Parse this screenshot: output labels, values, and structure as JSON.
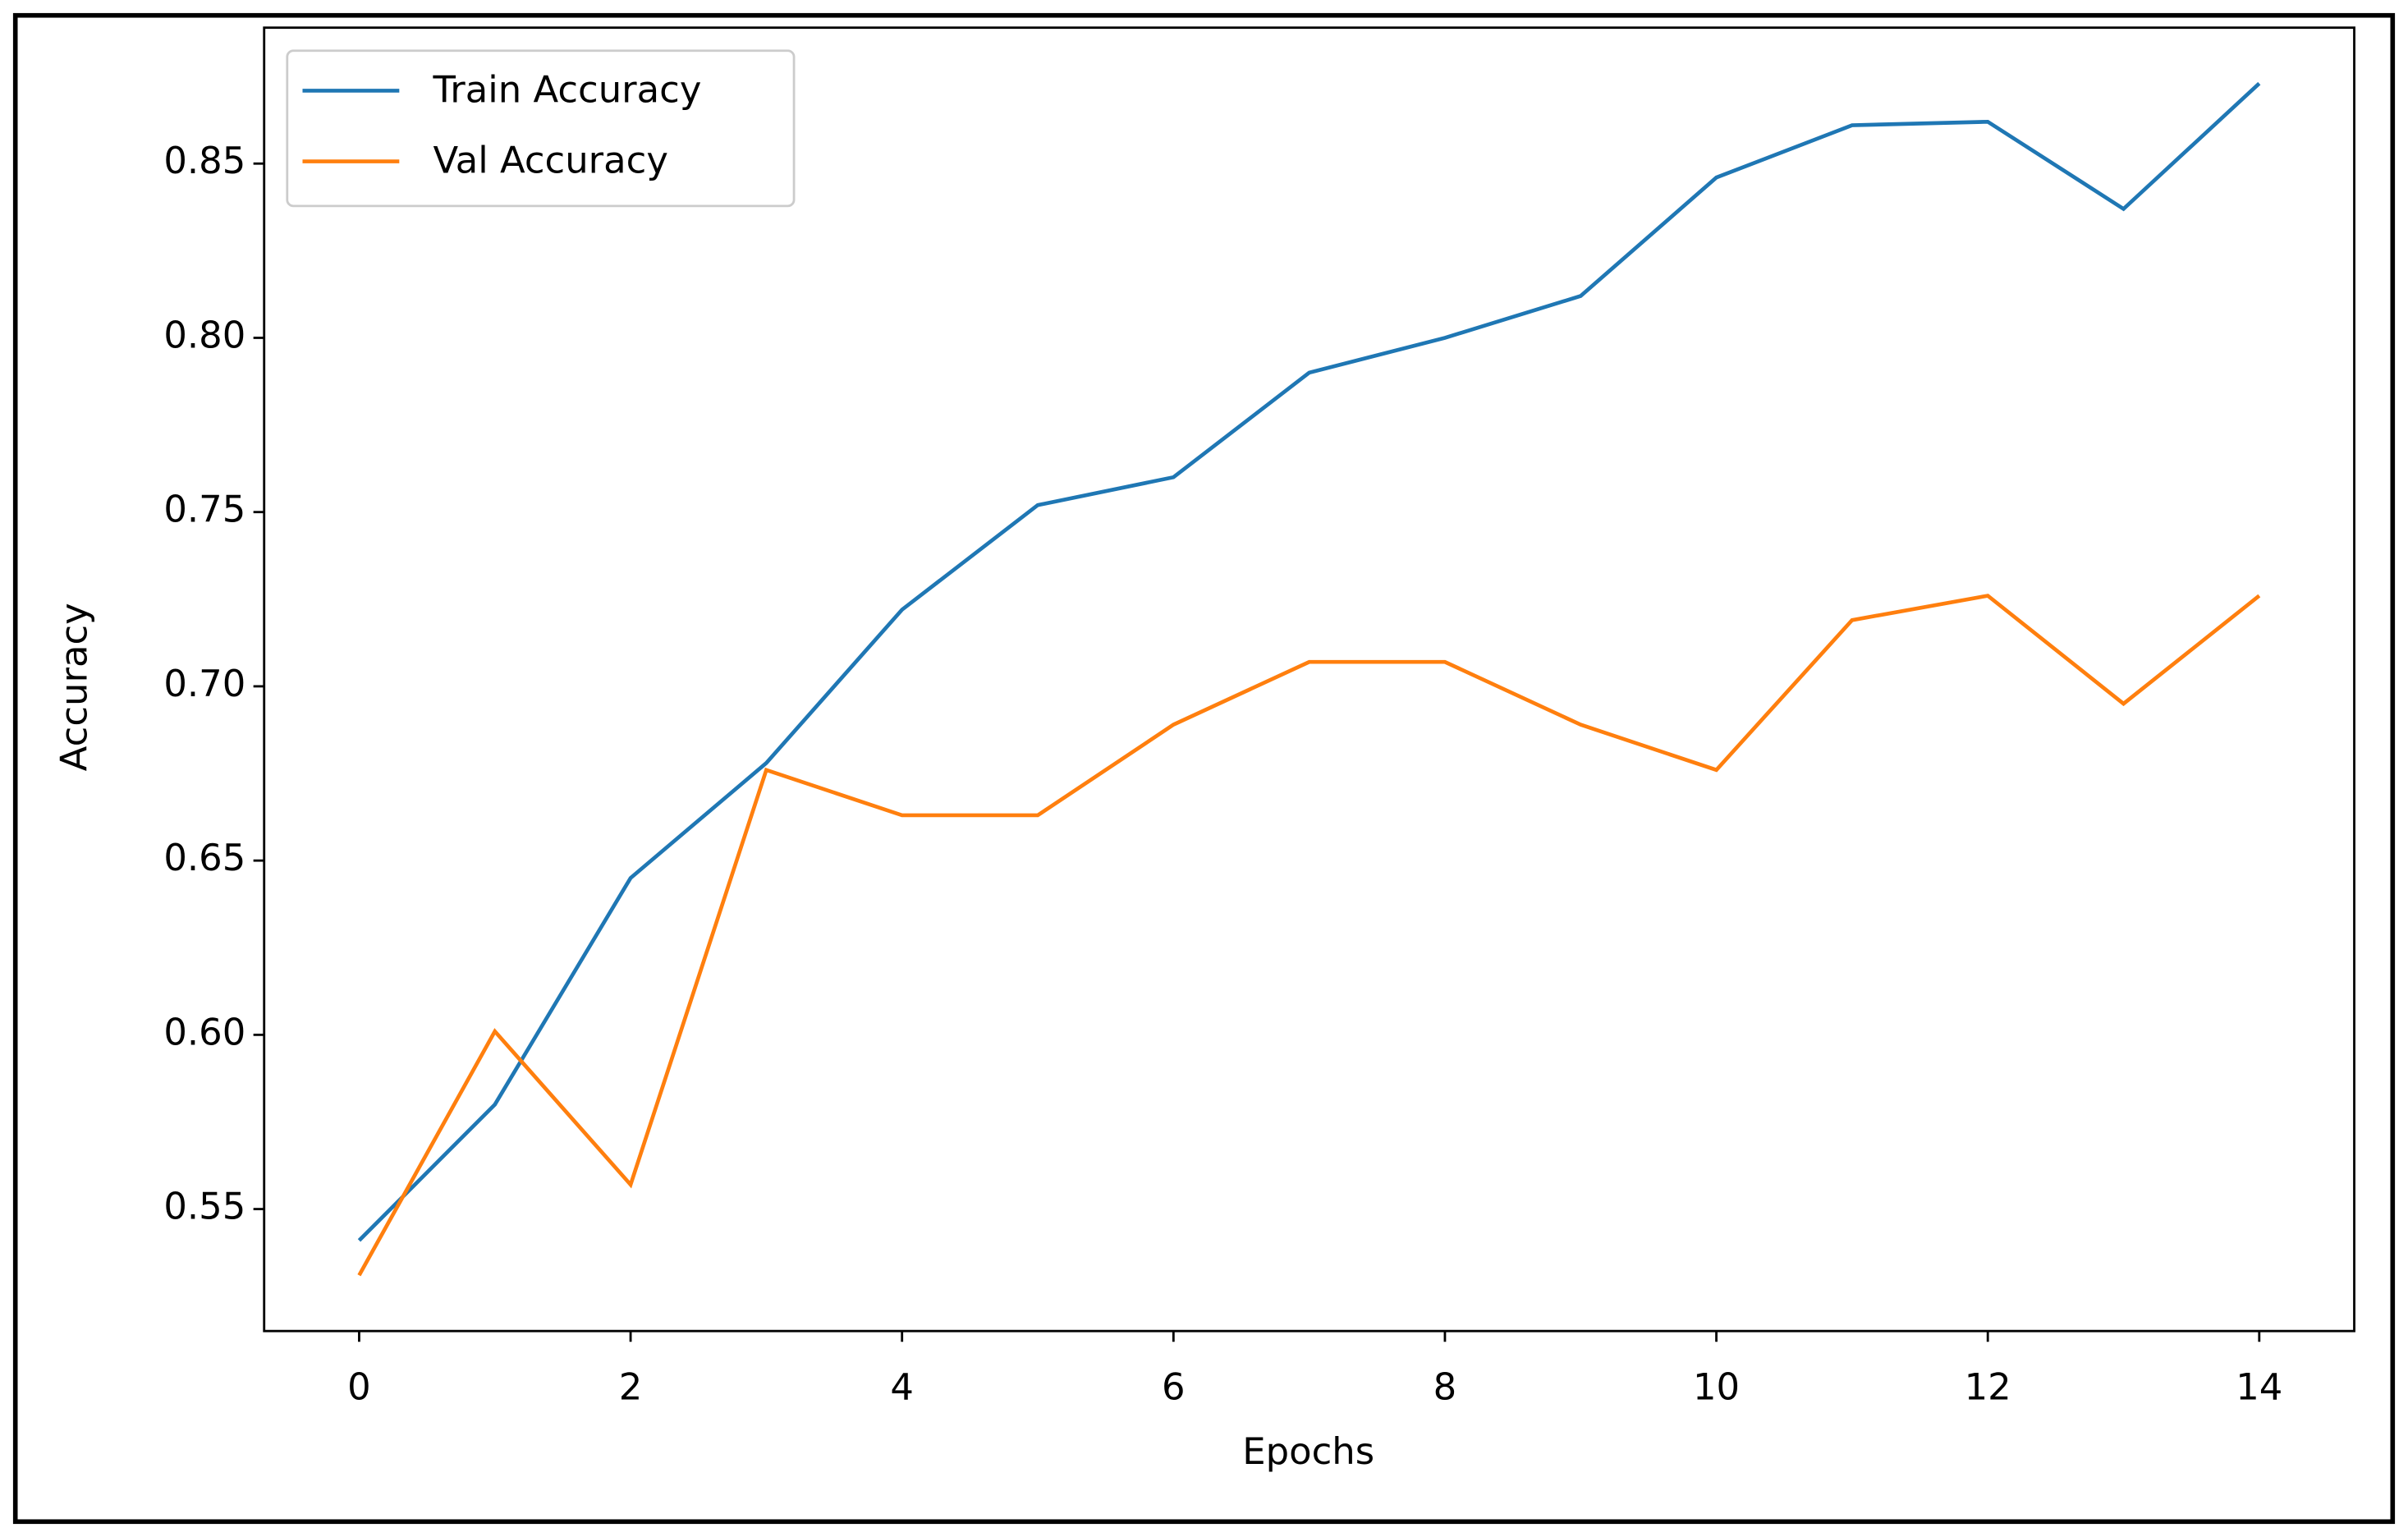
{
  "chart_data": {
    "type": "line",
    "x_label": "Epochs",
    "y_label": "Accuracy",
    "x": [
      0,
      1,
      2,
      3,
      4,
      5,
      6,
      7,
      8,
      9,
      10,
      11,
      12,
      13,
      14
    ],
    "series": [
      {
        "name": "Train Accuracy",
        "color": "#1f77b4",
        "values": [
          0.541,
          0.58,
          0.645,
          0.678,
          0.722,
          0.752,
          0.76,
          0.79,
          0.8,
          0.812,
          0.846,
          0.861,
          0.862,
          0.837,
          0.873
        ]
      },
      {
        "name": "Val Accuracy",
        "color": "#ff7f0e",
        "values": [
          0.531,
          0.601,
          0.557,
          0.676,
          0.663,
          0.663,
          0.689,
          0.707,
          0.707,
          0.689,
          0.676,
          0.719,
          0.726,
          0.695,
          0.726
        ]
      }
    ],
    "xlim": [
      -0.7,
      14.7
    ],
    "ylim": [
      0.515,
      0.889
    ],
    "xticks": [
      0,
      2,
      4,
      6,
      8,
      10,
      12,
      14
    ],
    "yticks": [
      0.55,
      {
        "value": 0.6,
        "label": "0.60"
      },
      0.65,
      {
        "value": 0.7,
        "label": "0.70"
      },
      0.75,
      {
        "value": 0.8,
        "label": "0.80"
      },
      0.85
    ],
    "grid": false,
    "legend": "upper left"
  }
}
